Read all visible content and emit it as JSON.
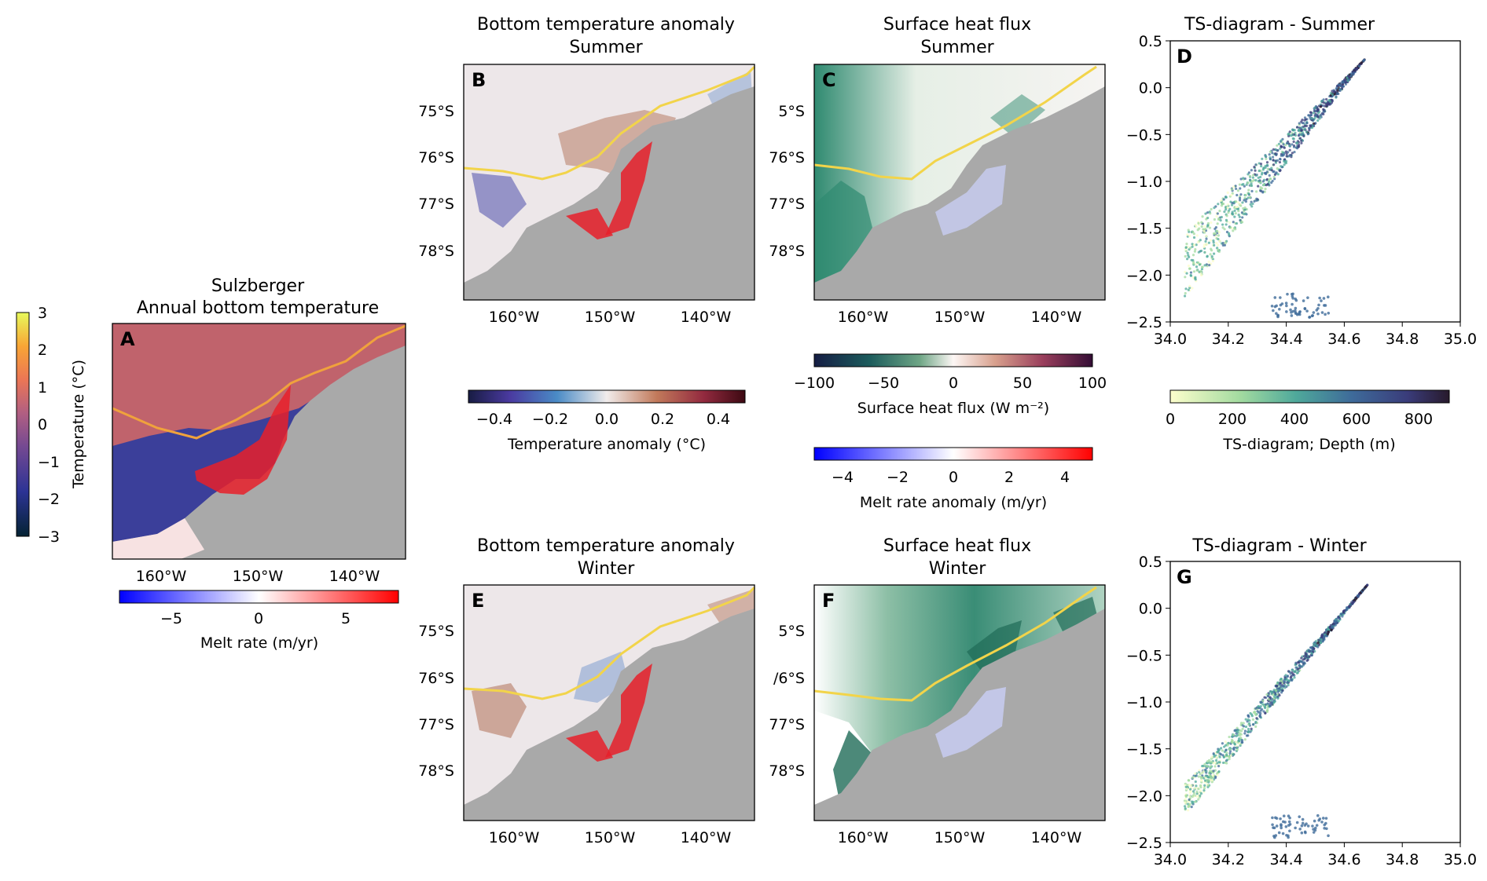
{
  "chart_data": [
    {
      "type": "map",
      "panel": "A",
      "title": "Sulzberger\nAnnual bottom temperature",
      "lon_ticks": [
        "160°W",
        "150°W",
        "140°W"
      ],
      "colorbars": [
        {
          "label": "Temperature (°C)",
          "range": [
            -3,
            3
          ],
          "ticks": [
            "3",
            "2",
            "1",
            "0",
            "−1",
            "−2",
            "−3"
          ],
          "colormap": "thermal",
          "orientation": "vertical"
        },
        {
          "label": "Melt rate (m/yr)",
          "range": [
            -8,
            8
          ],
          "ticks": [
            "−5",
            "0",
            "5"
          ],
          "colormap": "bwr",
          "orientation": "horizontal"
        }
      ]
    },
    {
      "type": "map",
      "panel": "B",
      "title": "Bottom temperature anomaly\nSummer",
      "lat_ticks": [
        "75°S",
        "76°S",
        "77°S",
        "78°S"
      ],
      "lon_ticks": [
        "160°W",
        "150°W",
        "140°W"
      ],
      "colorbar": {
        "label": "Temperature anomaly (°C)",
        "range": [
          -0.5,
          0.5
        ],
        "ticks": [
          "−0.4",
          "−0.2",
          "0.0",
          "0.2",
          "0.4"
        ],
        "colormap": "balance"
      }
    },
    {
      "type": "map",
      "panel": "C",
      "title": "Surface heat flux\nSummer",
      "lat_ticks": [
        "5°S",
        "76°S",
        "77°S",
        "78°S"
      ],
      "lon_ticks": [
        "160°W",
        "150°W",
        "140°W"
      ],
      "colorbars": [
        {
          "label": "Surface heat flux (W m⁻²)",
          "range": [
            -100,
            100
          ],
          "ticks": [
            "−100",
            "−50",
            "0",
            "50",
            "100"
          ],
          "colormap": "curl"
        },
        {
          "label": "Melt rate anomaly (m/yr)",
          "range": [
            -5,
            5
          ],
          "ticks": [
            "−4",
            "−2",
            "0",
            "2",
            "4"
          ],
          "colormap": "bwr"
        }
      ]
    },
    {
      "type": "scatter",
      "panel": "D",
      "title": "TS-diagram - Summer",
      "xlim": [
        34.0,
        35.0
      ],
      "ylim": [
        -2.5,
        0.5
      ],
      "xticks": [
        "34.0",
        "34.2",
        "34.4",
        "34.6",
        "34.8",
        "35.0"
      ],
      "yticks": [
        "0.5",
        "0.0",
        "−0.5",
        "−1.0",
        "−1.5",
        "−2.0",
        "−2.5"
      ],
      "colorbar": {
        "label": "TS-diagram; Depth (m)",
        "range": [
          0,
          900
        ],
        "ticks": [
          "0",
          "200",
          "400",
          "600",
          "800"
        ],
        "colormap": "deep"
      }
    },
    {
      "type": "map",
      "panel": "E",
      "title": "Bottom temperature anomaly\nWinter",
      "lat_ticks": [
        "75°S",
        "76°S",
        "77°S",
        "78°S"
      ],
      "lon_ticks": [
        "160°W",
        "150°W",
        "140°W"
      ]
    },
    {
      "type": "map",
      "panel": "F",
      "title": "Surface heat flux\nWinter",
      "lat_ticks": [
        "5°S",
        "/6°S",
        "77°S",
        "78°S"
      ],
      "lon_ticks": [
        "160°W",
        "150°W",
        "140°W"
      ]
    },
    {
      "type": "scatter",
      "panel": "G",
      "title": "TS-diagram - Winter",
      "xlim": [
        34.0,
        35.0
      ],
      "ylim": [
        -2.5,
        0.5
      ],
      "xticks": [
        "34.0",
        "34.2",
        "34.4",
        "34.6",
        "34.8",
        "35.0"
      ],
      "yticks": [
        "0.5",
        "0.0",
        "−0.5",
        "−1.0",
        "−1.5",
        "−2.0",
        "−2.5"
      ]
    }
  ],
  "colors": {
    "land": "#a9a9a9",
    "front": "#f2d44a",
    "melt_pos": "#e8202a",
    "melt_neg": "#3a3ae0",
    "ocean_warm": "#c0636c",
    "ocean_cold": "#3b3f9a"
  }
}
